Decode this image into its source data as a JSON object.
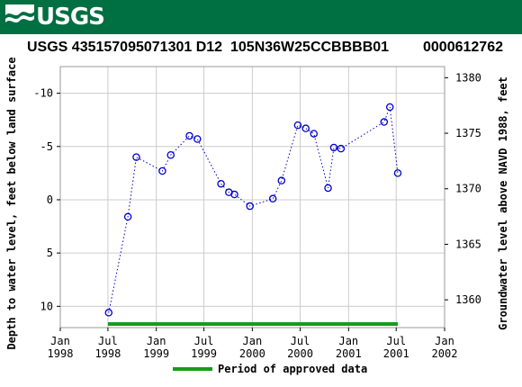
{
  "banner": {
    "logo_text": "USGS"
  },
  "header": {
    "site_id": "USGS 435157095071301 D12",
    "local_id": "105N36W25CCBBBB01",
    "other_id": "0000612762"
  },
  "colors": {
    "banner": "#006f41",
    "series": "#0000cc",
    "approved": "#169c19",
    "grid": "#cccccc"
  },
  "chart_data": {
    "type": "scatter",
    "title": "",
    "xlabel": "",
    "ylabel": "Depth to water level, feet below land surface",
    "ylabel_right": "Groundwater level above NAVD 1988, feet",
    "y_inverted": true,
    "ylim": [
      12,
      -12.5
    ],
    "ylim_right": [
      1357.5,
      1381
    ],
    "grid": true,
    "legend_position": "bottom-center",
    "x_ticks": [
      {
        "date": "1998-01-01",
        "line1": "Jan",
        "line2": "1998"
      },
      {
        "date": "1998-07-01",
        "line1": "Jul",
        "line2": "1998"
      },
      {
        "date": "1999-01-01",
        "line1": "Jan",
        "line2": "1999"
      },
      {
        "date": "1999-07-01",
        "line1": "Jul",
        "line2": "1999"
      },
      {
        "date": "2000-01-01",
        "line1": "Jan",
        "line2": "2000"
      },
      {
        "date": "2000-07-01",
        "line1": "Jul",
        "line2": "2000"
      },
      {
        "date": "2001-01-01",
        "line1": "Jan",
        "line2": "2001"
      },
      {
        "date": "2001-07-01",
        "line1": "Jul",
        "line2": "2001"
      },
      {
        "date": "2002-01-01",
        "line1": "Jan",
        "line2": "2002"
      }
    ],
    "y_ticks": [
      -10,
      -5,
      0,
      5,
      10
    ],
    "y_tick_labels": [
      "-10",
      "-5",
      "0",
      "5",
      "10"
    ],
    "y_ticks_right": [
      1380,
      1375,
      1370,
      1365,
      1360
    ],
    "y_ticks_right_labels": [
      "1380",
      "1375",
      "1370",
      "1365",
      "1360"
    ],
    "series": [
      {
        "x": [
          "1998-07-04",
          "1998-09-15",
          "1998-10-17",
          "1999-01-24",
          "1999-02-25",
          "1999-05-07",
          "1999-06-06",
          "1999-09-04",
          "1999-10-04",
          "1999-10-25",
          "1999-12-23",
          "2000-03-19",
          "2000-04-21",
          "2000-06-22",
          "2000-07-22",
          "2000-08-22",
          "2000-10-15",
          "2000-11-06",
          "2000-12-03",
          "2001-05-16",
          "2001-06-07",
          "2001-07-07"
        ],
        "y": [
          10.6,
          1.6,
          -4.0,
          -2.7,
          -4.2,
          -6.0,
          -5.7,
          -1.5,
          -0.7,
          -0.5,
          0.6,
          -0.1,
          -1.8,
          -7.0,
          -6.7,
          -6.2,
          -1.1,
          -4.9,
          -4.8,
          -7.3,
          -8.7,
          -2.5
        ]
      }
    ],
    "approved_period": {
      "start": "1998-07-01",
      "end": "2001-07-07"
    },
    "legend": [
      {
        "label": "Period of approved data"
      }
    ]
  }
}
